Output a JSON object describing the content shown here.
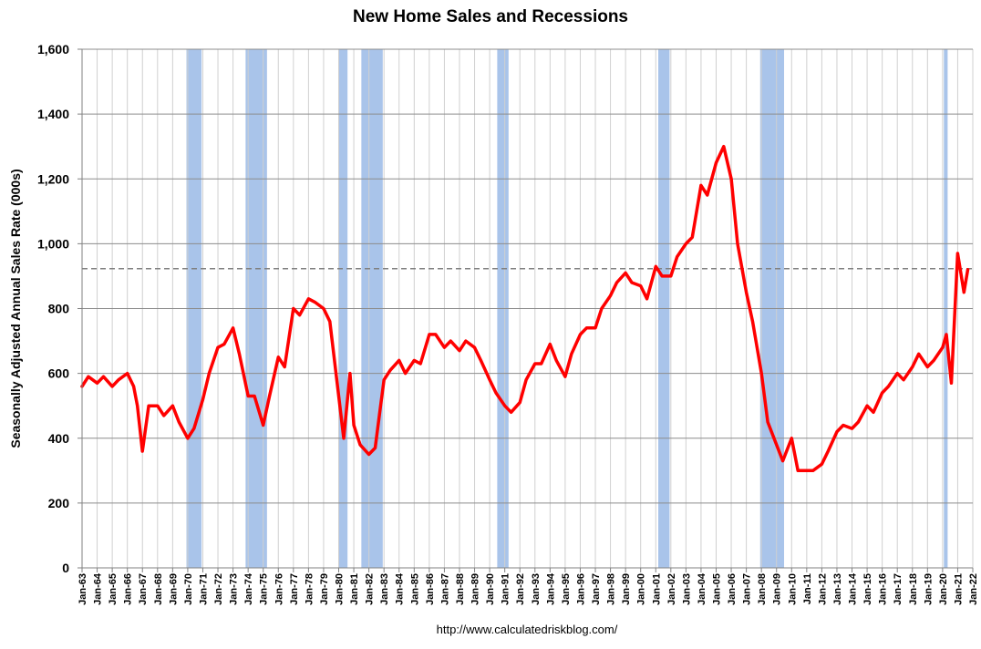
{
  "page": {
    "footer": "http://www.calculatedriskblog.com/"
  },
  "chart_data": {
    "type": "line",
    "title": "New Home Sales and Recessions",
    "xlabel": "",
    "ylabel": "Seasonally Adjusted Annual Sales Rate (000s)",
    "xlim": [
      "1963-01",
      "2022-01"
    ],
    "ylim": [
      0,
      1600
    ],
    "yticks": [
      0,
      200,
      400,
      600,
      800,
      1000,
      1200,
      1400,
      1600
    ],
    "ytick_labels": [
      "0",
      "200",
      "400",
      "600",
      "800",
      "1,000",
      "1,200",
      "1,400",
      "1,600"
    ],
    "xtick_labels": [
      "Jan-63",
      "Jan-64",
      "Jan-65",
      "Jan-66",
      "Jan-67",
      "Jan-68",
      "Jan-69",
      "Jan-70",
      "Jan-71",
      "Jan-72",
      "Jan-73",
      "Jan-74",
      "Jan-75",
      "Jan-76",
      "Jan-77",
      "Jan-78",
      "Jan-79",
      "Jan-80",
      "Jan-81",
      "Jan-82",
      "Jan-83",
      "Jan-84",
      "Jan-85",
      "Jan-86",
      "Jan-87",
      "Jan-88",
      "Jan-89",
      "Jan-90",
      "Jan-91",
      "Jan-92",
      "Jan-93",
      "Jan-94",
      "Jan-95",
      "Jan-96",
      "Jan-97",
      "Jan-98",
      "Jan-99",
      "Jan-00",
      "Jan-01",
      "Jan-02",
      "Jan-03",
      "Jan-04",
      "Jan-05",
      "Jan-06",
      "Jan-07",
      "Jan-08",
      "Jan-09",
      "Jan-10",
      "Jan-11",
      "Jan-12",
      "Jan-13",
      "Jan-14",
      "Jan-15",
      "Jan-16",
      "Jan-17",
      "Jan-18",
      "Jan-19",
      "Jan-20",
      "Jan-21",
      "Jan-22"
    ],
    "grid": true,
    "reference_line": {
      "y": 923,
      "style": "dashed",
      "color": "#808080"
    },
    "recessions": [
      [
        "1969-12",
        "1970-11"
      ],
      [
        "1973-11",
        "1975-03"
      ],
      [
        "1980-01",
        "1980-07"
      ],
      [
        "1981-07",
        "1982-11"
      ],
      [
        "1990-07",
        "1991-03"
      ],
      [
        "2001-03",
        "2001-11"
      ],
      [
        "2007-12",
        "2009-06"
      ],
      [
        "2020-02",
        "2020-04"
      ]
    ],
    "series": [
      {
        "color": "#ff0000",
        "recession_color": "#a9c4ea",
        "x": [
          "1963-01",
          "1963-06",
          "1964-01",
          "1964-06",
          "1965-01",
          "1965-06",
          "1966-01",
          "1966-06",
          "1966-09",
          "1967-01",
          "1967-06",
          "1968-01",
          "1968-06",
          "1969-01",
          "1969-06",
          "1970-01",
          "1970-06",
          "1971-01",
          "1971-06",
          "1972-01",
          "1972-06",
          "1973-01",
          "1973-06",
          "1974-01",
          "1974-06",
          "1975-01",
          "1975-06",
          "1976-01",
          "1976-06",
          "1977-01",
          "1977-06",
          "1978-01",
          "1978-06",
          "1979-01",
          "1979-06",
          "1980-01",
          "1980-05",
          "1980-10",
          "1981-01",
          "1981-06",
          "1982-01",
          "1982-06",
          "1982-10",
          "1983-01",
          "1983-06",
          "1984-01",
          "1984-06",
          "1985-01",
          "1985-06",
          "1986-01",
          "1986-06",
          "1987-01",
          "1987-06",
          "1988-01",
          "1988-06",
          "1989-01",
          "1989-06",
          "1990-01",
          "1990-06",
          "1991-01",
          "1991-06",
          "1992-01",
          "1992-06",
          "1993-01",
          "1993-06",
          "1994-01",
          "1994-06",
          "1995-01",
          "1995-06",
          "1996-01",
          "1996-06",
          "1997-01",
          "1997-06",
          "1998-01",
          "1998-06",
          "1999-01",
          "1999-06",
          "2000-01",
          "2000-06",
          "2001-01",
          "2001-06",
          "2002-01",
          "2002-06",
          "2003-01",
          "2003-06",
          "2004-01",
          "2004-06",
          "2005-01",
          "2005-07",
          "2006-01",
          "2006-06",
          "2007-01",
          "2007-06",
          "2008-01",
          "2008-06",
          "2009-01",
          "2009-06",
          "2010-01",
          "2010-06",
          "2011-01",
          "2011-06",
          "2012-01",
          "2012-06",
          "2013-01",
          "2013-06",
          "2014-01",
          "2014-06",
          "2015-01",
          "2015-06",
          "2016-01",
          "2016-06",
          "2017-01",
          "2017-06",
          "2018-01",
          "2018-06",
          "2019-01",
          "2019-06",
          "2020-01",
          "2020-04",
          "2020-08",
          "2021-01",
          "2021-06",
          "2021-09"
        ],
        "values": [
          560,
          590,
          570,
          590,
          560,
          580,
          600,
          560,
          500,
          360,
          500,
          500,
          470,
          500,
          450,
          400,
          430,
          520,
          600,
          680,
          690,
          740,
          660,
          530,
          530,
          440,
          530,
          650,
          620,
          800,
          780,
          830,
          820,
          800,
          760,
          530,
          400,
          600,
          440,
          380,
          350,
          370,
          490,
          580,
          610,
          640,
          600,
          640,
          630,
          720,
          720,
          680,
          700,
          670,
          700,
          680,
          640,
          580,
          540,
          500,
          480,
          510,
          580,
          630,
          630,
          690,
          640,
          590,
          660,
          720,
          740,
          740,
          800,
          840,
          880,
          910,
          880,
          870,
          830,
          930,
          900,
          900,
          960,
          1000,
          1020,
          1180,
          1150,
          1250,
          1300,
          1200,
          1000,
          850,
          760,
          600,
          450,
          380,
          330,
          400,
          300,
          300,
          300,
          320,
          360,
          420,
          440,
          430,
          450,
          500,
          480,
          540,
          560,
          600,
          580,
          620,
          660,
          620,
          640,
          680,
          720,
          570,
          970,
          850,
          920
        ]
      }
    ]
  }
}
